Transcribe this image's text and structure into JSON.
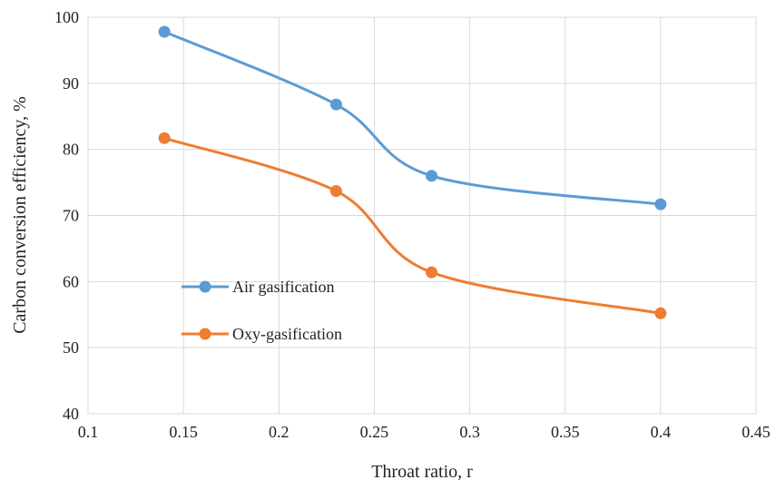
{
  "chart_data": {
    "type": "line",
    "xlabel": "Throat ratio, r",
    "ylabel": "Carbon conversion efficiency, %",
    "xlim": [
      0.1,
      0.45
    ],
    "ylim": [
      40,
      100
    ],
    "xticks": [
      "0.1",
      "0.15",
      "0.2",
      "0.25",
      "0.3",
      "0.35",
      "0.4",
      "0.45"
    ],
    "yticks": [
      "40",
      "50",
      "60",
      "70",
      "80",
      "90",
      "100"
    ],
    "grid": true,
    "legend_position": "center-left",
    "x": [
      0.14,
      0.23,
      0.28,
      0.4
    ],
    "series": [
      {
        "name": "Air gasification",
        "color": "#5b9bd5",
        "values": [
          97.8,
          86.8,
          76.0,
          71.7
        ]
      },
      {
        "name": "Oxy-gasification",
        "color": "#ed7d31",
        "values": [
          81.7,
          73.7,
          61.4,
          55.2
        ]
      }
    ]
  }
}
